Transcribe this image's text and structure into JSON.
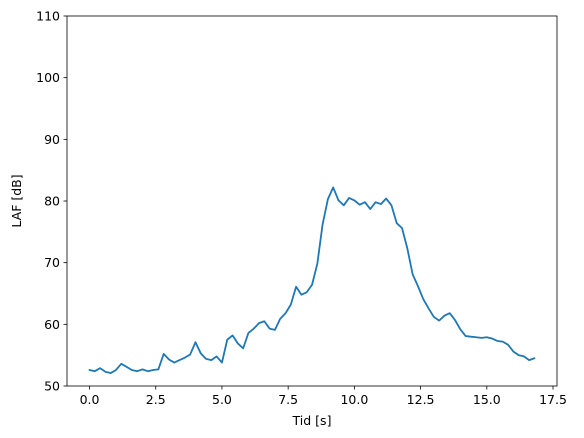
{
  "chart_data": {
    "type": "line",
    "title": "",
    "xlabel": "Tid [s]",
    "ylabel": "LAF [dB]",
    "xlim": [
      -0.85,
      17.65
    ],
    "ylim": [
      50,
      110
    ],
    "xticks": [
      0.0,
      2.5,
      5.0,
      7.5,
      10.0,
      12.5,
      15.0,
      17.5
    ],
    "xtick_labels": [
      "0.0",
      "2.5",
      "5.0",
      "7.5",
      "10.0",
      "12.5",
      "15.0",
      "17.5"
    ],
    "yticks": [
      50,
      60,
      70,
      80,
      90,
      100,
      110
    ],
    "ytick_labels": [
      "50",
      "60",
      "70",
      "80",
      "90",
      "100",
      "110"
    ],
    "grid": false,
    "legend": "none",
    "series": [
      {
        "color": "#1f77b4",
        "x": [
          0.0,
          0.2,
          0.4,
          0.6,
          0.8,
          1.0,
          1.2,
          1.4,
          1.6,
          1.8,
          2.0,
          2.2,
          2.4,
          2.6,
          2.8,
          3.0,
          3.2,
          3.4,
          3.6,
          3.8,
          4.0,
          4.2,
          4.4,
          4.6,
          4.8,
          5.0,
          5.2,
          5.4,
          5.6,
          5.8,
          6.0,
          6.2,
          6.4,
          6.6,
          6.8,
          7.0,
          7.2,
          7.4,
          7.6,
          7.8,
          8.0,
          8.2,
          8.4,
          8.6,
          8.8,
          9.0,
          9.2,
          9.4,
          9.6,
          9.8,
          10.0,
          10.2,
          10.4,
          10.6,
          10.8,
          11.0,
          11.2,
          11.4,
          11.6,
          11.8,
          12.0,
          12.2,
          12.4,
          12.6,
          12.8,
          13.0,
          13.2,
          13.4,
          13.6,
          13.8,
          14.0,
          14.2,
          14.4,
          14.6,
          14.8,
          15.0,
          15.2,
          15.4,
          15.6,
          15.8,
          16.0,
          16.2,
          16.4,
          16.6,
          16.8
        ],
        "y": [
          52.6,
          52.4,
          52.9,
          52.3,
          52.1,
          52.6,
          53.6,
          53.1,
          52.6,
          52.4,
          52.7,
          52.4,
          52.6,
          52.7,
          55.2,
          54.3,
          53.8,
          54.2,
          54.6,
          55.1,
          57.1,
          55.3,
          54.4,
          54.2,
          54.8,
          53.8,
          57.5,
          58.2,
          56.9,
          56.1,
          58.6,
          59.3,
          60.2,
          60.5,
          59.3,
          59.1,
          60.9,
          61.8,
          63.2,
          66.1,
          64.8,
          65.2,
          66.4,
          69.8,
          76.2,
          80.3,
          82.2,
          80.1,
          79.3,
          80.5,
          80.1,
          79.4,
          79.8,
          78.7,
          79.8,
          79.5,
          80.4,
          79.3,
          76.4,
          75.6,
          72.3,
          68.1,
          66.2,
          64.1,
          62.6,
          61.2,
          60.6,
          61.4,
          61.8,
          60.7,
          59.2,
          58.1,
          58.0,
          57.9,
          57.8,
          57.9,
          57.7,
          57.3,
          57.2,
          56.7,
          55.6,
          55.0,
          54.8,
          54.2,
          54.5
        ]
      }
    ]
  }
}
